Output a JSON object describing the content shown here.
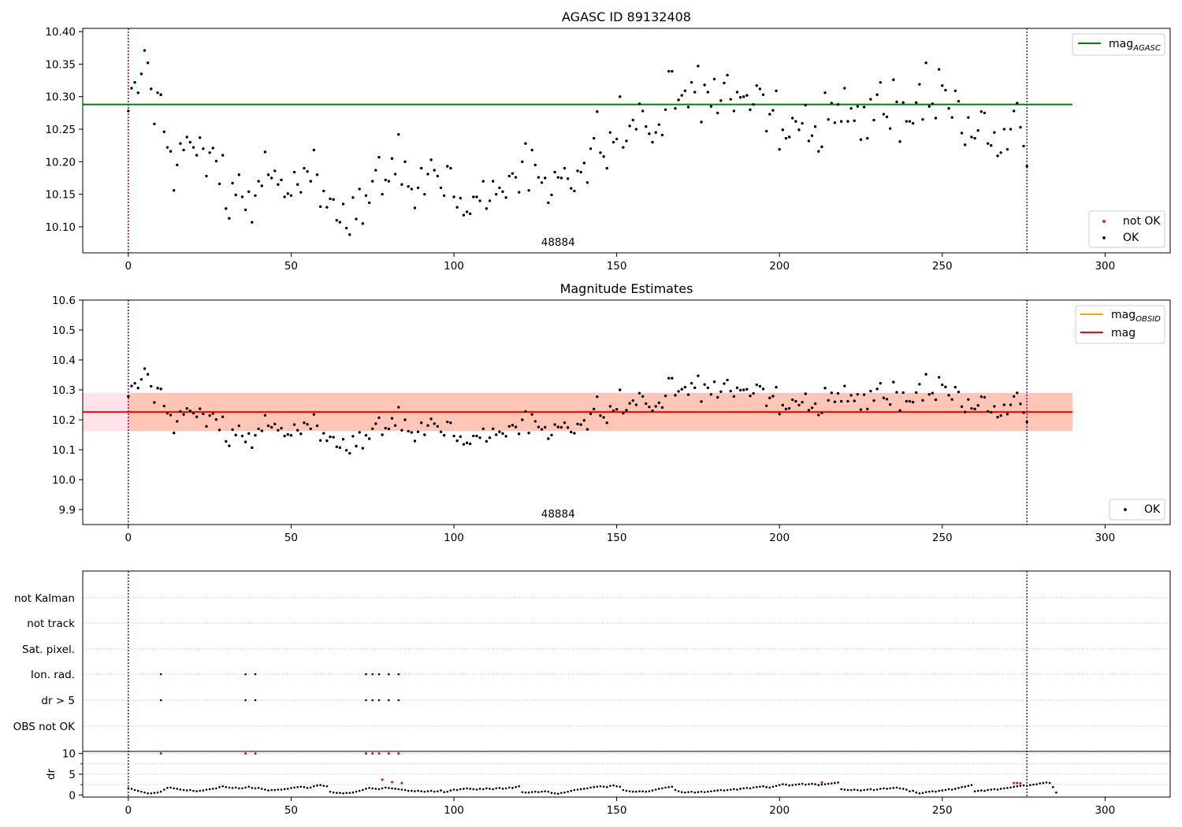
{
  "figure": {
    "background": "#ffffff"
  },
  "chart_data": [
    {
      "type": "scatter",
      "title": "AGASC ID 89132408",
      "xlim": [
        -14,
        320
      ],
      "ylim": [
        10.06,
        10.405
      ],
      "xticks": [
        0,
        50,
        100,
        150,
        200,
        250,
        300
      ],
      "yticks": [
        10.1,
        10.15,
        10.2,
        10.25,
        10.3,
        10.35,
        10.4
      ],
      "ytick_labels": [
        "10.10",
        "10.15",
        "10.20",
        "10.25",
        "10.30",
        "10.35",
        "10.40"
      ],
      "annotation": "48884",
      "annotation_x": 132,
      "vlines": [
        0,
        276
      ],
      "vline_color": "#800080",
      "hline": {
        "y": 10.288,
        "xmax": 290,
        "color": "#008000",
        "label": "mag",
        "sub": "AGASC"
      },
      "legend_top": [
        {
          "label": "mag",
          "sub": "AGASC",
          "kind": "line",
          "color": "#008000"
        }
      ],
      "legend_bottom": [
        {
          "label": "not OK",
          "kind": "dot",
          "color": "#ff0000"
        },
        {
          "label": "OK",
          "kind": "dot",
          "color": "#000000"
        }
      ],
      "series_ref": "mag_values"
    },
    {
      "type": "scatter",
      "title": "Magnitude Estimates",
      "xlim": [
        -14,
        320
      ],
      "ylim": [
        9.85,
        10.6
      ],
      "xticks": [
        0,
        50,
        100,
        150,
        200,
        250,
        300
      ],
      "yticks": [
        9.9,
        10.0,
        10.1,
        10.2,
        10.3,
        10.4,
        10.5,
        10.6
      ],
      "ytick_labels": [
        "9.9",
        "10.0",
        "10.1",
        "10.2",
        "10.3",
        "10.4",
        "10.5",
        "10.6"
      ],
      "annotation": "48884",
      "annotation_x": 132,
      "vlines": [
        0,
        276
      ],
      "vline_color": "#800080",
      "bands": [
        {
          "y0": 10.163,
          "y1": 10.29,
          "xmax": 290,
          "color": "#ffc0cb"
        },
        {
          "y0": 10.163,
          "y1": 10.29,
          "x0": 0,
          "x1": 290,
          "color": "#ffa07a"
        }
      ],
      "hlines": [
        {
          "y": 10.226,
          "x0": 0,
          "x1": 290,
          "color": "#ffa500",
          "label": "mag",
          "sub": "OBSID"
        },
        {
          "y": 10.226,
          "xmax": 290,
          "color": "#ff0000",
          "label": "mag"
        }
      ],
      "legend_top": [
        {
          "label": "mag",
          "sub": "OBSID",
          "kind": "line",
          "color": "#ffa500"
        },
        {
          "label": "mag",
          "kind": "line",
          "color": "#ff0000"
        }
      ],
      "legend_bottom": [
        {
          "label": "OK",
          "kind": "dot",
          "color": "#000000"
        }
      ],
      "series_ref": "mag_values"
    },
    {
      "type": "scatter",
      "title": "",
      "xlim": [
        -14,
        320
      ],
      "xticks": [
        0,
        50,
        100,
        150,
        200,
        250,
        300
      ],
      "flag_rows": [
        "not Kalman",
        "not track",
        "Sat. pixel.",
        "Ion. rad.",
        "dr > 5",
        "OBS not OK"
      ],
      "flag_points": {
        "Ion. rad.": [
          10,
          36,
          39,
          73,
          75,
          77,
          80,
          83
        ],
        "dr > 5": [
          10,
          36,
          39,
          73,
          75,
          77,
          80,
          83
        ]
      },
      "dr_ylabel": "dr",
      "dr_yticks": [
        0,
        5,
        10
      ],
      "dr_ylim": [
        -0.5,
        10.5
      ],
      "dr_red_points": [
        [
          10,
          10
        ],
        [
          36,
          10
        ],
        [
          39,
          10
        ],
        [
          73,
          10
        ],
        [
          75,
          10
        ],
        [
          77,
          10
        ],
        [
          80,
          10
        ],
        [
          83,
          10
        ],
        [
          78,
          3.7
        ],
        [
          81,
          3.1
        ],
        [
          84,
          2.9
        ],
        [
          213,
          3.0
        ],
        [
          272,
          2.9
        ],
        [
          273,
          2.9
        ],
        [
          274,
          2.8
        ]
      ],
      "vlines": [
        0,
        276
      ],
      "vline_color": "#800080"
    }
  ],
  "mag_values": [
    10.278,
    10.313,
    10.322,
    10.306,
    10.335,
    10.371,
    10.352,
    10.312,
    10.258,
    10.306,
    10.303,
    10.246,
    10.222,
    10.216,
    10.156,
    10.195,
    10.228,
    10.218,
    10.238,
    10.23,
    10.222,
    10.21,
    10.237,
    10.22,
    10.178,
    10.214,
    10.221,
    10.201,
    10.166,
    10.21,
    10.128,
    10.113,
    10.167,
    10.149,
    10.18,
    10.146,
    10.126,
    10.154,
    10.107,
    10.148,
    10.17,
    10.163,
    10.215,
    10.18,
    10.175,
    10.186,
    10.165,
    10.172,
    10.146,
    10.151,
    10.148,
    10.184,
    10.165,
    10.153,
    10.19,
    10.185,
    10.17,
    10.218,
    10.18,
    10.131,
    10.155,
    10.13,
    10.143,
    10.142,
    10.11,
    10.107,
    10.135,
    10.098,
    10.088,
    10.145,
    10.112,
    10.158,
    10.105,
    10.148,
    10.137,
    10.17,
    10.187,
    10.207,
    10.15,
    10.172,
    10.17,
    10.205,
    10.181,
    10.242,
    10.165,
    10.2,
    10.162,
    10.158,
    10.129,
    10.16,
    10.19,
    10.15,
    10.181,
    10.203,
    10.187,
    10.178,
    10.16,
    10.148,
    10.193,
    10.19,
    10.146,
    10.13,
    10.144,
    10.118,
    10.123,
    10.12,
    10.146,
    10.146,
    10.14,
    10.17,
    10.128,
    10.14,
    10.17,
    10.15,
    10.16,
    10.154,
    10.145,
    10.178,
    10.182,
    10.176,
    10.153,
    10.2,
    10.228,
    10.156,
    10.218,
    10.195,
    10.176,
    10.168,
    10.175,
    10.137,
    10.149,
    10.184,
    10.176,
    10.175,
    10.19,
    10.174,
    10.159,
    10.155,
    10.186,
    10.184,
    10.198,
    10.168,
    10.22,
    10.236,
    10.277,
    10.214,
    10.208,
    10.19,
    10.245,
    10.23,
    10.235,
    10.3,
    10.222,
    10.232,
    10.255,
    10.264,
    10.25,
    10.289,
    10.278,
    10.254,
    10.243,
    10.23,
    10.245,
    10.257,
    10.241,
    10.28,
    10.339,
    10.339,
    10.282,
    10.295,
    10.302,
    10.309,
    10.284,
    10.322,
    10.307,
    10.347,
    10.261,
    10.318,
    10.307,
    10.285,
    10.327,
    10.275,
    10.294,
    10.321,
    10.333,
    10.296,
    10.278,
    10.307,
    10.299,
    10.3,
    10.302,
    10.28,
    10.288,
    10.317,
    10.312,
    10.303,
    10.247,
    10.273,
    10.279,
    10.309,
    10.219,
    10.249,
    10.236,
    10.238,
    10.267,
    10.262,
    10.249,
    10.259,
    10.287,
    10.232,
    10.24,
    10.254,
    10.216,
    10.223,
    10.306,
    10.265,
    10.29,
    10.26,
    10.288,
    10.262,
    10.313,
    10.262,
    10.282,
    10.263,
    10.285,
    10.234,
    10.284,
    10.236,
    10.296,
    10.264,
    10.303,
    10.322,
    10.273,
    10.269,
    10.251,
    10.326,
    10.292,
    10.231,
    10.291,
    10.262,
    10.262,
    10.259,
    10.291,
    10.319,
    10.265,
    10.352,
    10.285,
    10.289,
    10.267,
    10.342,
    10.317,
    10.31,
    10.282,
    10.268,
    10.309,
    10.293,
    10.244,
    10.226,
    10.268,
    10.238,
    10.236,
    10.248,
    10.277,
    10.275,
    10.228,
    10.225,
    10.245,
    10.209,
    10.214,
    10.25,
    10.219,
    10.25,
    10.278,
    10.29,
    10.253,
    10.224,
    10.193
  ],
  "dr_values": [
    1.6,
    1.5,
    1.2,
    1.0,
    0.8,
    0.6,
    0.4,
    0.4,
    0.5,
    0.6,
    0.8,
    1.3,
    1.7,
    1.8,
    1.6,
    1.5,
    1.3,
    1.2,
    1.1,
    1.2,
    1.0,
    0.9,
    1.0,
    1.1,
    1.3,
    1.4,
    1.5,
    1.6,
    1.9,
    2.1,
    1.9,
    1.8,
    1.7,
    1.8,
    1.6,
    1.6,
    1.8,
    2.0,
    1.7,
    1.6,
    1.7,
    1.5,
    1.3,
    1.1,
    1.2,
    1.2,
    1.3,
    1.3,
    1.4,
    1.5,
    1.7,
    1.8,
    1.9,
    2.0,
    1.9,
    1.7,
    1.8,
    2.1,
    2.3,
    2.4,
    2.2,
    2.1,
    0.8,
    0.6,
    0.5,
    0.5,
    0.4,
    0.5,
    0.5,
    0.6,
    0.8,
    1.0,
    1.2,
    1.5,
    1.7,
    1.6,
    1.5,
    1.4,
    1.6,
    1.8,
    1.7,
    1.6,
    1.5,
    1.4,
    1.3,
    1.2,
    1.0,
    1.0,
    0.9,
    1.0,
    0.9,
    0.8,
    0.9,
    1.0,
    0.8,
    0.9,
    1.1,
    0.7,
    0.8,
    1.1,
    1.3,
    1.2,
    1.4,
    1.5,
    1.6,
    1.5,
    1.4,
    1.3,
    1.5,
    1.4,
    1.6,
    1.5,
    1.4,
    1.6,
    1.7,
    1.5,
    1.6,
    1.8,
    1.7,
    1.9,
    2.1,
    0.7,
    0.6,
    0.6,
    0.7,
    0.8,
    0.7,
    0.8,
    0.9,
    0.8,
    0.5,
    0.4,
    0.3,
    0.5,
    0.6,
    0.8,
    1.0,
    1.2,
    1.3,
    1.4,
    1.5,
    1.6,
    1.8,
    1.9,
    2.0,
    2.1,
    2.0,
    1.9,
    2.2,
    2.3,
    2.1,
    2.0,
    1.2,
    1.0,
    0.9,
    0.8,
    0.8,
    0.9,
    0.9,
    0.8,
    0.9,
    1.1,
    1.3,
    1.5,
    1.6,
    1.8,
    1.9,
    2.0,
    1.2,
    0.9,
    0.7,
    0.6,
    0.7,
    0.8,
    0.6,
    0.7,
    0.8,
    0.7,
    0.8,
    0.9,
    1.0,
    1.1,
    1.2,
    1.1,
    1.2,
    1.3,
    1.4,
    1.3,
    1.5,
    1.6,
    1.7,
    1.6,
    1.8,
    1.9,
    2.0,
    2.1,
    1.9,
    1.8,
    2.0,
    2.2,
    2.4,
    2.6,
    2.5,
    2.3,
    2.4,
    2.5,
    2.6,
    2.7,
    2.5,
    2.6,
    2.7,
    2.6,
    2.4,
    2.5,
    2.6,
    2.7,
    2.8,
    2.9,
    3.0,
    1.4,
    1.3,
    1.2,
    1.2,
    1.3,
    1.2,
    1.1,
    1.2,
    1.3,
    1.4,
    1.2,
    1.3,
    1.5,
    1.6,
    1.5,
    1.6,
    1.7,
    1.8,
    1.6,
    1.5,
    1.3,
    0.9,
    1.0,
    0.6,
    0.4,
    0.5,
    0.7,
    0.8,
    0.9,
    0.8,
    1.0,
    1.1,
    1.2,
    1.4,
    1.3,
    1.5,
    1.7,
    1.9,
    2.0,
    2.2,
    2.4,
    0.9,
    1.0,
    1.1,
    1.0,
    1.2,
    1.3,
    1.4,
    1.3,
    1.5,
    1.6,
    1.7,
    1.8,
    2.0,
    2.1,
    2.2,
    2.3,
    2.2,
    2.4,
    2.5,
    2.6,
    2.8,
    2.9,
    3.0,
    2.9,
    1.9,
    0.6
  ]
}
